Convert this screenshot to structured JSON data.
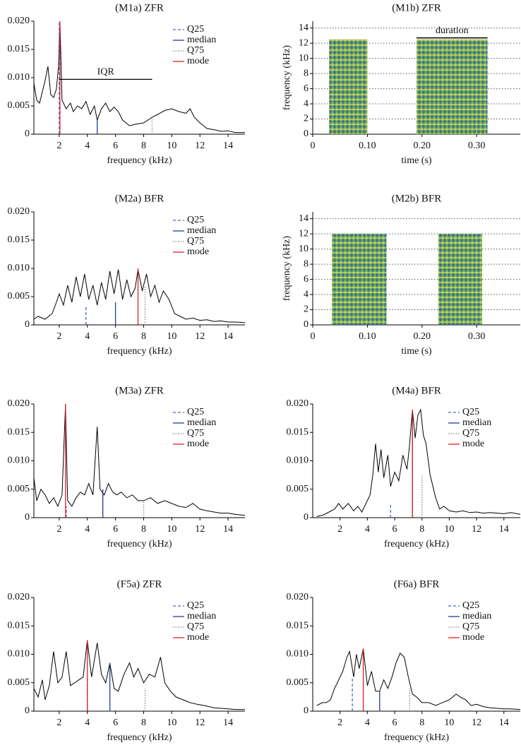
{
  "chart_data": [
    {
      "type": "spectrum",
      "title": "(M1a) ZFR",
      "x_label": "frequency (kHz)",
      "xlim": [
        0.2,
        15.2
      ],
      "xticks": [
        2,
        4,
        6,
        8,
        10,
        12,
        14
      ],
      "ylim": [
        0,
        0.02
      ],
      "yticks": [
        0,
        0.005,
        {
          "value": 0.01,
          "label": "0.010"
        },
        0.015,
        {
          "value": 0.02,
          "label": "0.020"
        }
      ],
      "color": "#000000",
      "x": [
        0.2,
        0.4,
        0.6,
        0.8,
        1.0,
        1.2,
        1.4,
        1.6,
        1.8,
        1.95,
        2.05,
        2.2,
        2.5,
        2.8,
        3.0,
        3.3,
        3.6,
        3.9,
        4.2,
        4.5,
        4.7,
        5.0,
        5.3,
        5.6,
        5.9,
        6.2,
        6.5,
        7.0,
        7.5,
        8.0,
        8.6,
        9.0,
        9.5,
        10.0,
        10.5,
        11.0,
        11.3,
        11.6,
        12.0,
        12.5,
        13.0,
        13.5,
        14.0,
        14.5,
        15.0,
        15.2
      ],
      "values": [
        0.009,
        0.006,
        0.0055,
        0.0075,
        0.0095,
        0.012,
        0.007,
        0.0065,
        0.008,
        0.012,
        0.02,
        0.006,
        0.0045,
        0.0055,
        0.004,
        0.005,
        0.0045,
        0.0058,
        0.0035,
        0.005,
        0.0025,
        0.0045,
        0.0055,
        0.004,
        0.0048,
        0.004,
        0.0025,
        0.0015,
        0.0018,
        0.002,
        0.003,
        0.0035,
        0.0042,
        0.0045,
        0.004,
        0.0037,
        0.0045,
        0.003,
        0.002,
        0.001,
        0.0008,
        0.0005,
        0.0006,
        0.0003,
        0.0003,
        0.0003
      ],
      "markers": [
        {
          "name": "Q25",
          "x": 2.0,
          "y": 0.02,
          "color": "#4466cc",
          "style": "dashed"
        },
        {
          "name": "median",
          "x": 4.7,
          "y": 0.0025,
          "color": "#2a3a9a",
          "style": "solid"
        },
        {
          "name": "Q75",
          "x": 8.6,
          "y": 0.003,
          "color": "#888888",
          "style": "dotted"
        },
        {
          "name": "mode",
          "x": 2.05,
          "y": 0.02,
          "color": "#e02020",
          "style": "solid"
        }
      ],
      "iqr": {
        "label": "IQR",
        "y": 0.0097
      }
    },
    {
      "type": "spectrogram",
      "title": "(M1b) ZFR",
      "x_label": "time (s)",
      "y_label": "frequency (kHz)",
      "xlim": [
        0,
        0.38
      ],
      "xticks": [
        0,
        {
          "value": 0.1,
          "label": "0.10"
        },
        {
          "value": 0.2,
          "label": "0.20"
        },
        {
          "value": 0.3,
          "label": "0.30"
        }
      ],
      "ylim": [
        0,
        14.9
      ],
      "yticks": [
        0,
        2,
        4,
        6,
        8,
        10,
        12,
        14
      ],
      "grid": true,
      "segments": [
        {
          "start": 0.03,
          "end": 0.1,
          "fmax": 12.5
        },
        {
          "start": 0.19,
          "end": 0.32,
          "fmax": 12.5
        }
      ],
      "duration": {
        "label": "duration",
        "y": 12.7,
        "segment": 1
      }
    },
    {
      "type": "spectrum",
      "title": "(M2a) BFR",
      "x_label": "frequency (kHz)",
      "xlim": [
        0.2,
        15.2
      ],
      "xticks": [
        2,
        4,
        6,
        8,
        10,
        12,
        14
      ],
      "ylim": [
        0,
        0.02
      ],
      "yticks": [
        0,
        0.005,
        {
          "value": 0.01,
          "label": "0.010"
        },
        0.015,
        {
          "value": 0.02,
          "label": "0.020"
        }
      ],
      "color": "#000000",
      "x": [
        0.2,
        0.5,
        1.0,
        1.5,
        1.8,
        2.0,
        2.3,
        2.6,
        2.9,
        3.2,
        3.5,
        3.8,
        4.1,
        4.4,
        4.7,
        5.0,
        5.3,
        5.6,
        5.9,
        6.2,
        6.5,
        6.8,
        7.1,
        7.4,
        7.6,
        7.9,
        8.2,
        8.5,
        8.8,
        9.1,
        9.4,
        9.8,
        10.2,
        10.6,
        11.0,
        11.5,
        12.0,
        12.5,
        13.0,
        13.5,
        14.0,
        14.5,
        15.2
      ],
      "values": [
        0.001,
        0.0015,
        0.001,
        0.002,
        0.004,
        0.0055,
        0.0035,
        0.007,
        0.004,
        0.0085,
        0.005,
        0.009,
        0.0045,
        0.007,
        0.0035,
        0.0075,
        0.0045,
        0.0095,
        0.0055,
        0.0098,
        0.0045,
        0.008,
        0.005,
        0.0065,
        0.0098,
        0.006,
        0.009,
        0.005,
        0.007,
        0.004,
        0.006,
        0.0045,
        0.002,
        0.0015,
        0.001,
        0.0012,
        0.0008,
        0.0009,
        0.0006,
        0.0007,
        0.0005,
        0.0005,
        0.0004
      ],
      "markers": [
        {
          "name": "Q25",
          "x": 3.9,
          "y": 0.0035,
          "color": "#4466cc",
          "style": "dashed"
        },
        {
          "name": "median",
          "x": 6.0,
          "y": 0.004,
          "color": "#2a3a9a",
          "style": "solid"
        },
        {
          "name": "Q75",
          "x": 8.1,
          "y": 0.007,
          "color": "#888888",
          "style": "dotted"
        },
        {
          "name": "mode",
          "x": 7.6,
          "y": 0.01,
          "color": "#e02020",
          "style": "solid"
        }
      ]
    },
    {
      "type": "spectrogram",
      "title": "(M2b) BFR",
      "x_label": "time (s)",
      "y_label": "frequency (kHz)",
      "xlim": [
        0,
        0.38
      ],
      "xticks": [
        0,
        {
          "value": 0.1,
          "label": "0.10"
        },
        {
          "value": 0.2,
          "label": "0.20"
        },
        {
          "value": 0.3,
          "label": "0.30"
        }
      ],
      "ylim": [
        0,
        14.9
      ],
      "yticks": [
        0,
        2,
        4,
        6,
        8,
        10,
        12,
        14
      ],
      "grid": true,
      "segments": [
        {
          "start": 0.035,
          "end": 0.135,
          "fmax": 12
        },
        {
          "start": 0.23,
          "end": 0.31,
          "fmax": 12
        }
      ]
    },
    {
      "type": "spectrum",
      "title": "(M3a) ZFR",
      "x_label": "frequency (kHz)",
      "xlim": [
        0.2,
        15.2
      ],
      "xticks": [
        2,
        4,
        6,
        8,
        10,
        12,
        14
      ],
      "ylim": [
        0,
        0.02
      ],
      "yticks": [
        0,
        0.005,
        {
          "value": 0.01,
          "label": "0.010"
        },
        0.015,
        {
          "value": 0.02,
          "label": "0.020"
        }
      ],
      "color": "#000000",
      "x": [
        0.2,
        0.4,
        0.7,
        1.0,
        1.3,
        1.6,
        1.9,
        2.2,
        2.45,
        2.6,
        2.9,
        3.2,
        3.5,
        3.8,
        4.1,
        4.4,
        4.7,
        4.9,
        5.2,
        5.5,
        5.8,
        6.1,
        6.4,
        6.8,
        7.2,
        7.6,
        8.0,
        8.5,
        9.0,
        9.5,
        10.0,
        10.5,
        11.0,
        11.5,
        12.0,
        12.5,
        13.0,
        13.5,
        14.0,
        14.5,
        15.2
      ],
      "values": [
        0.007,
        0.003,
        0.005,
        0.004,
        0.0025,
        0.0035,
        0.002,
        0.004,
        0.02,
        0.003,
        0.002,
        0.0035,
        0.0045,
        0.004,
        0.006,
        0.004,
        0.016,
        0.005,
        0.004,
        0.006,
        0.0045,
        0.004,
        0.0045,
        0.0035,
        0.004,
        0.003,
        0.003,
        0.0035,
        0.0025,
        0.003,
        0.0025,
        0.002,
        0.0018,
        0.0025,
        0.0015,
        0.0012,
        0.001,
        0.0008,
        0.0008,
        0.0006,
        0.0004
      ],
      "markers": [
        {
          "name": "Q25",
          "x": 2.5,
          "y": 0.002,
          "color": "#4466cc",
          "style": "dashed"
        },
        {
          "name": "median",
          "x": 5.1,
          "y": 0.005,
          "color": "#2a3a9a",
          "style": "solid"
        },
        {
          "name": "Q75",
          "x": 8.0,
          "y": 0.003,
          "color": "#888888",
          "style": "dotted"
        },
        {
          "name": "mode",
          "x": 2.45,
          "y": 0.02,
          "color": "#e02020",
          "style": "solid"
        }
      ]
    },
    {
      "type": "spectrum",
      "title": "(M4a) BFR",
      "x_label": "frequency (kHz)",
      "xlim": [
        0,
        15.2
      ],
      "xticks": [
        2,
        4,
        6,
        8,
        10,
        12,
        14
      ],
      "ylim": [
        0,
        0.02
      ],
      "yticks": [
        0,
        0.005,
        {
          "value": 0.01,
          "label": "0.010"
        },
        0.015,
        {
          "value": 0.02,
          "label": "0.020"
        }
      ],
      "color": "#000000",
      "x": [
        0.3,
        0.8,
        1.2,
        1.6,
        1.9,
        2.2,
        2.6,
        3.0,
        3.3,
        3.6,
        3.9,
        4.2,
        4.4,
        4.6,
        4.8,
        5.0,
        5.2,
        5.5,
        5.7,
        6.0,
        6.3,
        6.6,
        6.9,
        7.1,
        7.3,
        7.5,
        7.7,
        7.9,
        8.1,
        8.3,
        8.6,
        9.0,
        9.3,
        9.6,
        10.0,
        10.5,
        11.0,
        11.5,
        12.0,
        12.5,
        13.0,
        13.5,
        14.0,
        14.5,
        15.2
      ],
      "values": [
        0.0002,
        0.0005,
        0.001,
        0.0015,
        0.0025,
        0.0015,
        0.0025,
        0.0012,
        0.002,
        0.001,
        0.0025,
        0.004,
        0.0075,
        0.013,
        0.008,
        0.012,
        0.007,
        0.011,
        0.0055,
        0.008,
        0.0065,
        0.011,
        0.0085,
        0.013,
        0.019,
        0.014,
        0.018,
        0.019,
        0.0145,
        0.013,
        0.0075,
        0.0035,
        0.0015,
        0.002,
        0.0012,
        0.001,
        0.0012,
        0.0009,
        0.001,
        0.0008,
        0.0009,
        0.0008,
        0.0007,
        0.0009,
        0.0006
      ],
      "markers": [
        {
          "name": "Q25",
          "x": 5.7,
          "y": 0.0025,
          "color": "#4466cc",
          "style": "dashed"
        },
        {
          "name": "median",
          "x": 7.3,
          "y": 0.018,
          "color": "#2a3a9a",
          "style": "solid"
        },
        {
          "name": "Q75",
          "x": 8.0,
          "y": 0.0075,
          "color": "#888888",
          "style": "dotted"
        },
        {
          "name": "mode",
          "x": 7.3,
          "y": 0.019,
          "color": "#e02020",
          "style": "solid"
        }
      ]
    },
    {
      "type": "spectrum",
      "title": "(F5a) ZFR",
      "x_label": "frequency (kHz)",
      "xlim": [
        0.2,
        15.2
      ],
      "xticks": [
        2,
        4,
        6,
        8,
        10,
        12,
        14
      ],
      "ylim": [
        0,
        0.02
      ],
      "yticks": [
        0,
        0.005,
        {
          "value": 0.01,
          "label": "0.010"
        },
        0.015,
        {
          "value": 0.02,
          "label": "0.020"
        }
      ],
      "color": "#000000",
      "x": [
        0.2,
        0.5,
        0.8,
        1.0,
        1.3,
        1.6,
        1.9,
        2.2,
        2.5,
        2.8,
        3.1,
        3.4,
        3.7,
        4.0,
        4.3,
        4.7,
        5.0,
        5.3,
        5.6,
        5.9,
        6.2,
        6.6,
        7.0,
        7.3,
        7.6,
        8.0,
        8.4,
        8.8,
        9.2,
        9.5,
        9.9,
        10.3,
        10.8,
        11.3,
        11.8,
        12.3,
        13.0,
        13.5,
        14.0,
        14.5,
        15.2
      ],
      "values": [
        0.004,
        0.0025,
        0.0055,
        0.002,
        0.0045,
        0.0105,
        0.005,
        0.006,
        0.0105,
        0.0045,
        0.005,
        0.0055,
        0.006,
        0.0125,
        0.006,
        0.012,
        0.0065,
        0.005,
        0.0085,
        0.004,
        0.0035,
        0.0065,
        0.0085,
        0.006,
        0.0075,
        0.005,
        0.0065,
        0.006,
        0.0095,
        0.005,
        0.0035,
        0.0025,
        0.002,
        0.0015,
        0.0012,
        0.001,
        0.0006,
        0.0005,
        0.0004,
        0.0003,
        0.0003
      ],
      "markers": [
        {
          "name": "Q25",
          "x": 4.0,
          "y": 0.006,
          "color": "#4466cc",
          "style": "dashed"
        },
        {
          "name": "median",
          "x": 5.6,
          "y": 0.0085,
          "color": "#2a3a9a",
          "style": "solid"
        },
        {
          "name": "Q75",
          "x": 8.1,
          "y": 0.004,
          "color": "#888888",
          "style": "dotted"
        },
        {
          "name": "mode",
          "x": 4.0,
          "y": 0.0125,
          "color": "#e02020",
          "style": "solid"
        }
      ]
    },
    {
      "type": "spectrum",
      "title": "(F6a) BFR",
      "x_label": "frequency (kHz)",
      "xlim": [
        0,
        15.2
      ],
      "xticks": [
        2,
        4,
        6,
        8,
        10,
        12,
        14
      ],
      "ylim": [
        0,
        0.02
      ],
      "yticks": [
        0,
        0.005,
        {
          "value": 0.01,
          "label": "0.010"
        },
        0.015,
        {
          "value": 0.02,
          "label": "0.020"
        }
      ],
      "color": "#000000",
      "x": [
        0.3,
        0.7,
        1.0,
        1.3,
        1.6,
        1.9,
        2.2,
        2.5,
        2.7,
        3.0,
        3.2,
        3.4,
        3.7,
        4.0,
        4.3,
        4.6,
        4.9,
        5.2,
        5.5,
        5.8,
        6.1,
        6.4,
        6.7,
        7.0,
        7.3,
        7.6,
        8.0,
        8.5,
        9.0,
        9.5,
        10.0,
        10.5,
        10.8,
        11.2,
        11.6,
        12.0,
        12.5,
        13.0,
        13.5,
        14.0,
        14.5,
        15.2
      ],
      "values": [
        0.001,
        0.0015,
        0.0015,
        0.002,
        0.004,
        0.0055,
        0.007,
        0.0095,
        0.0105,
        0.006,
        0.01,
        0.0075,
        0.011,
        0.0045,
        0.007,
        0.0035,
        0.0035,
        0.0055,
        0.004,
        0.006,
        0.0085,
        0.0102,
        0.0095,
        0.006,
        0.003,
        0.0025,
        0.0015,
        0.0015,
        0.001,
        0.0015,
        0.002,
        0.003,
        0.0025,
        0.002,
        0.001,
        0.0012,
        0.0008,
        0.0006,
        0.0005,
        0.0004,
        0.0004,
        0.0003
      ],
      "markers": [
        {
          "name": "Q25",
          "x": 2.9,
          "y": 0.006,
          "color": "#4466cc",
          "style": "dashed"
        },
        {
          "name": "median",
          "x": 4.9,
          "y": 0.0035,
          "color": "#2a3a9a",
          "style": "solid"
        },
        {
          "name": "Q75",
          "x": 7.1,
          "y": 0.004,
          "color": "#888888",
          "style": "dotted"
        },
        {
          "name": "mode",
          "x": 3.7,
          "y": 0.011,
          "color": "#e02020",
          "style": "solid"
        }
      ]
    }
  ]
}
